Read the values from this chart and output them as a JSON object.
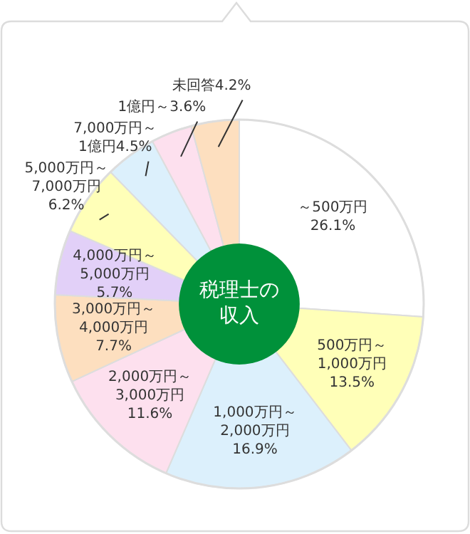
{
  "chart_data": {
    "type": "donut",
    "title": "税理士の収入",
    "categories": [
      "～500万円",
      "500万円～1,000万円",
      "1,000万円～2,000万円",
      "2,000万円～3,000万円",
      "3,000万円～4,000万円",
      "4,000万円～5,000万円",
      "5,000万円～7,000万円",
      "7,000万円～1億円",
      "1億円～",
      "未回答"
    ],
    "values": [
      26.1,
      13.5,
      16.9,
      11.6,
      7.7,
      5.7,
      6.2,
      4.5,
      3.6,
      4.2
    ],
    "colors": [
      "#ffffff",
      "#ffffb8",
      "#dcf0fc",
      "#fde0ee",
      "#fddfbf",
      "#e2d0f8",
      "#ffffb8",
      "#dcf0fc",
      "#fde0ee",
      "#fddfbf"
    ],
    "value_labels": [
      "26.1%",
      "13.5%",
      "16.9%",
      "11.6%",
      "7.7%",
      "5.7%",
      "6.2%",
      "4.5%",
      "3.6%",
      "4.2%"
    ],
    "legend": false
  }
}
